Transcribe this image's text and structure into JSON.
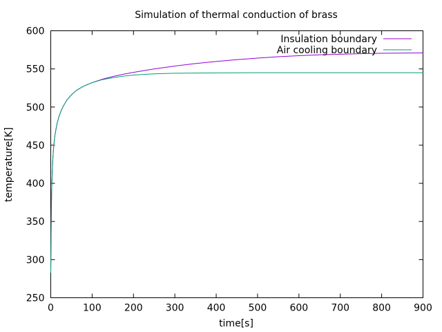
{
  "chart_data": {
    "type": "line",
    "title": "Simulation of thermal conduction of brass",
    "xlabel": "time[s]",
    "ylabel": "temperature[K]",
    "xlim": [
      0,
      900
    ],
    "ylim": [
      250,
      600
    ],
    "xticks": [
      0,
      100,
      200,
      300,
      400,
      500,
      600,
      700,
      800,
      900
    ],
    "yticks": [
      250,
      300,
      350,
      400,
      450,
      500,
      550,
      600
    ],
    "grid": false,
    "legend_position": "top-right",
    "series": [
      {
        "name": "Insulation boundary",
        "color": "#9400d3",
        "x": [
          0,
          1,
          2,
          3,
          5,
          7,
          10,
          15,
          20,
          25,
          30,
          40,
          50,
          60,
          70,
          80,
          100,
          125,
          150,
          175,
          200,
          250,
          300,
          350,
          400,
          450,
          500,
          550,
          600,
          650,
          700,
          750,
          800,
          850,
          900
        ],
        "y": [
          283,
          345,
          385,
          405,
          432,
          448,
          463,
          478,
          488,
          495,
          501,
          510,
          516,
          521,
          524.5,
          527.5,
          532,
          536.5,
          540,
          543,
          545.5,
          550,
          553.8,
          557,
          559.8,
          562.2,
          564.2,
          566,
          567.3,
          568.5,
          569.3,
          570,
          570.5,
          570.8,
          571
        ]
      },
      {
        "name": "Air cooling boundary",
        "color": "#009e73",
        "x": [
          0,
          1,
          2,
          3,
          5,
          7,
          10,
          15,
          20,
          25,
          30,
          40,
          50,
          60,
          70,
          80,
          100,
          125,
          150,
          175,
          200,
          250,
          300,
          350,
          400,
          500,
          600,
          700,
          800,
          900
        ],
        "y": [
          283,
          345,
          385,
          405,
          432,
          448,
          463,
          478,
          488,
          495,
          501,
          510,
          516,
          521,
          524.5,
          527.5,
          532,
          536,
          538.5,
          540.5,
          542,
          543.5,
          544.3,
          544.6,
          544.8,
          545,
          545,
          545,
          545,
          545
        ]
      }
    ]
  }
}
